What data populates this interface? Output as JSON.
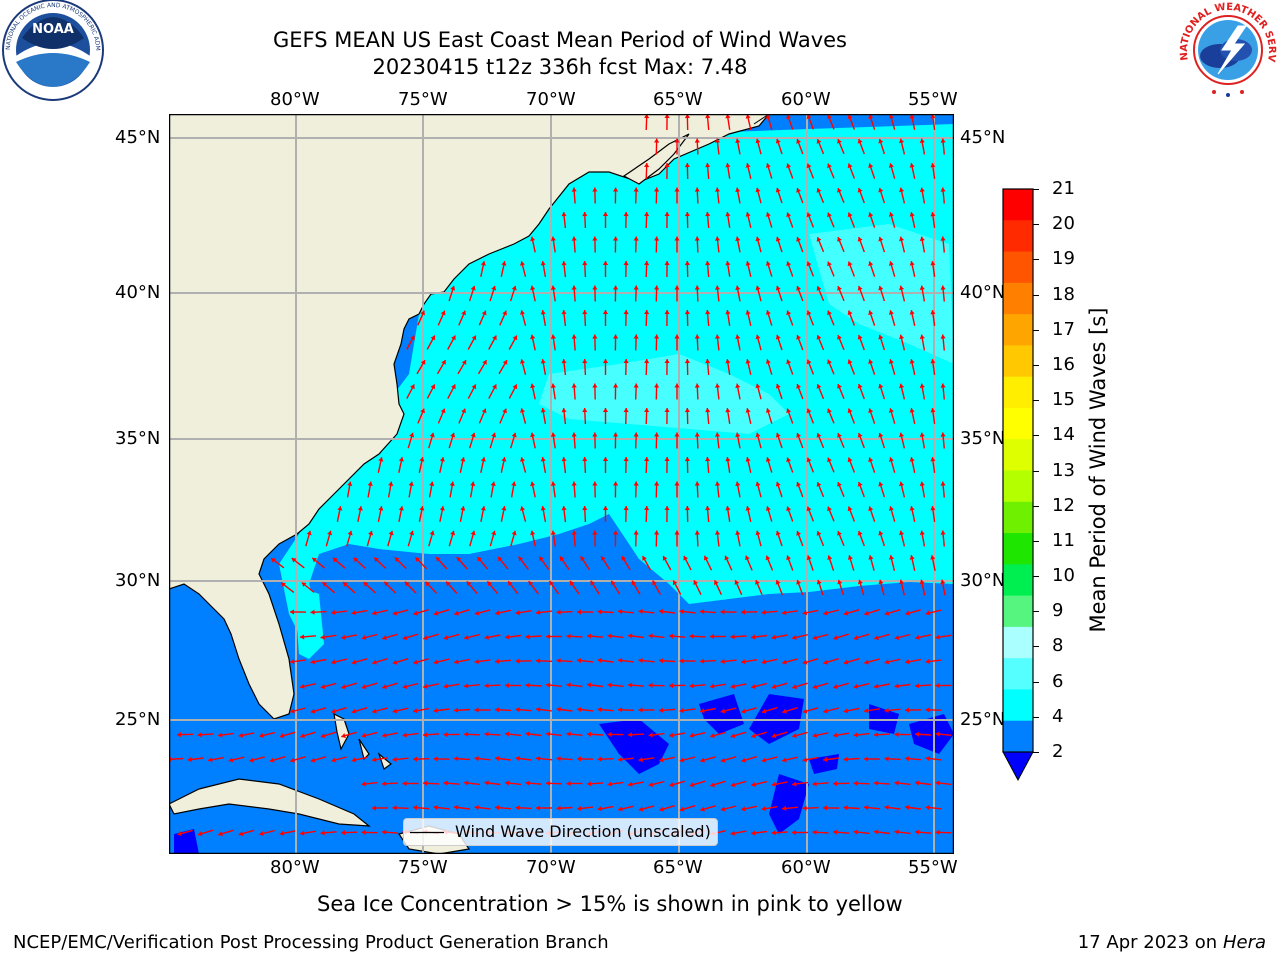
{
  "header": {
    "title_line1": "GEFS MEAN US East Coast Mean Period of Wind Waves",
    "title_line2": "20230415 t12z 336h fcst   Max: 7.48"
  },
  "logos": {
    "noaa_text": "NOAA",
    "noaa_ring_text": "NATIONAL OCEANIC AND ATMOSPHERIC ADMINISTRATION · U.S. DEPARTMENT OF COMMERCE",
    "nws_ring_text": "NATIONAL WEATHER SERVICE"
  },
  "map": {
    "lon_labels": [
      "80°W",
      "75°W",
      "70°W",
      "65°W",
      "60°W",
      "55°W"
    ],
    "lat_labels": [
      "45°N",
      "40°N",
      "35°N",
      "30°N",
      "25°N"
    ],
    "legend_label": "Wind Wave Direction (unscaled)",
    "arrow_color": "#ff0000",
    "land_color": "#efefdc",
    "grid_color": "#b0b0b0"
  },
  "colorbar": {
    "label": "Mean Period of Wind Waves [s]",
    "ticks": [
      "21",
      "20",
      "19",
      "18",
      "17",
      "16",
      "15",
      "14",
      "13",
      "12",
      "11",
      "10",
      "9",
      "8",
      "6",
      "4",
      "2"
    ],
    "colors_top_to_bottom": [
      "#ff0000",
      "#ff2a00",
      "#ff5500",
      "#ff7f00",
      "#ffa500",
      "#ffc800",
      "#ffee00",
      "#ffff00",
      "#ddff00",
      "#b4ff00",
      "#6ef000",
      "#1ee600",
      "#00ef50",
      "#55f57f",
      "#aaffff",
      "#55ffff",
      "#00ffff",
      "#0080ff"
    ],
    "underflow_color": "#0000ff"
  },
  "subtitle": "Sea Ice Concentration > 15% is shown in pink to yellow",
  "footer": {
    "left": "NCEP/EMC/Verification Post Processing Product Generation Branch",
    "date": "17 Apr 2023 on ",
    "machine": "Hera"
  }
}
